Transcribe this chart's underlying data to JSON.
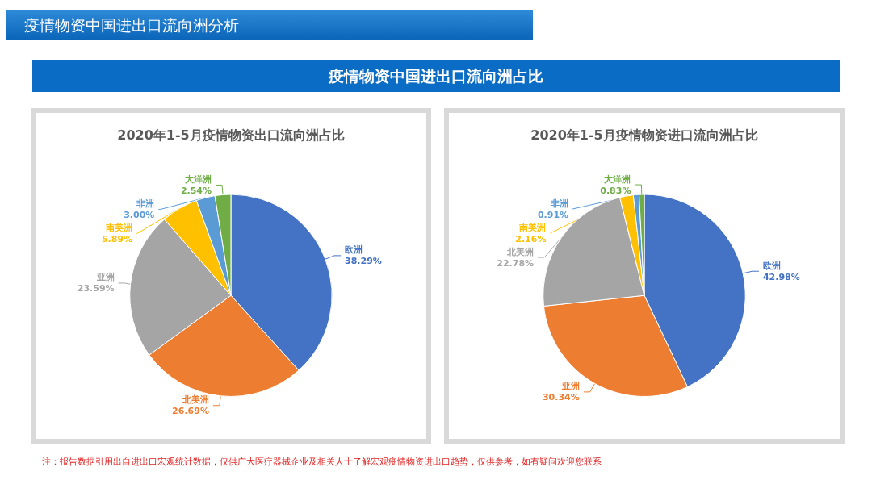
{
  "chart_data": [
    {
      "type": "pie",
      "title": "2020年1-5月疫情物资出口流向洲占比",
      "annotations": [
        "疫情物资中国进出口流向洲分析",
        "疫情物资中国进出口流向洲占比",
        "注：报告数据引用出自进出口宏观统计数据，仅供广大医疗器械企业及相关人士了解宏观疫情物资进出口趋势，仅供参考，如有疑问欢迎您联系"
      ],
      "categories": [
        "欧洲",
        "北美洲",
        "亚洲",
        "南美洲",
        "非洲",
        "大洋洲"
      ],
      "values": [
        38.29,
        26.69,
        23.59,
        5.89,
        3.0,
        2.54
      ],
      "value_labels": [
        "38.29%",
        "26.69%",
        "23.59%",
        "5.89%",
        "3.00%",
        "2.54%"
      ],
      "colors": [
        "#4472c4",
        "#ed7d31",
        "#a5a5a5",
        "#ffc000",
        "#5b9bd5",
        "#70ad47"
      ],
      "legend": false
    },
    {
      "type": "pie",
      "title": "2020年1-5月疫情物资进口流向洲占比",
      "categories": [
        "欧洲",
        "亚洲",
        "北美洲",
        "南美洲",
        "非洲",
        "大洋洲"
      ],
      "values": [
        42.98,
        30.34,
        22.78,
        2.16,
        0.91,
        0.83
      ],
      "value_labels": [
        "42.98%",
        "30.34%",
        "22.78%",
        "2.16%",
        "0.91%",
        "0.83%"
      ],
      "colors": [
        "#4472c4",
        "#ed7d31",
        "#a5a5a5",
        "#ffc000",
        "#5b9bd5",
        "#70ad47"
      ],
      "legend": false
    }
  ]
}
